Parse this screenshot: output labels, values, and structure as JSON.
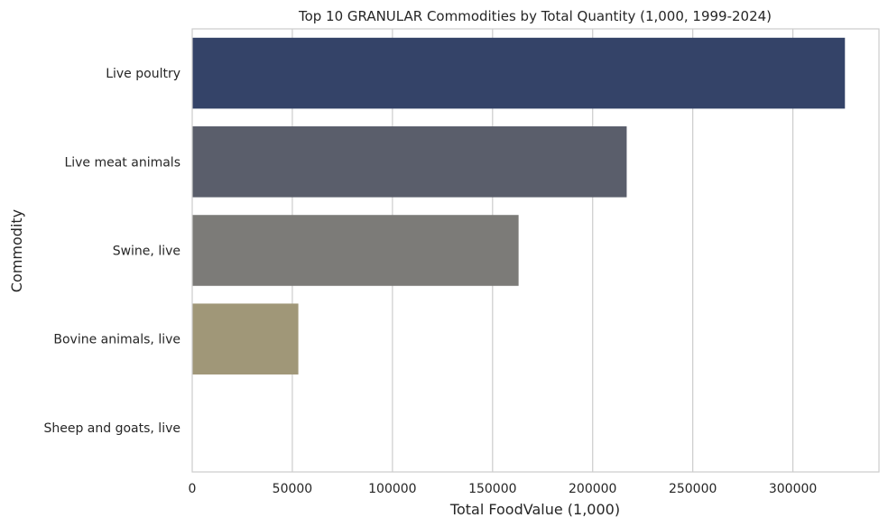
{
  "chart_data": {
    "type": "bar",
    "orientation": "horizontal",
    "title": "Top 10 GRANULAR Commodities by Total Quantity (1,000, 1999-2024)",
    "xlabel": "Total FoodValue (1,000)",
    "ylabel": "Commodity",
    "categories": [
      "Live poultry",
      "Live meat animals",
      "Swine, live",
      "Bovine animals, live",
      "Sheep and goats, live"
    ],
    "values": [
      326000,
      217000,
      163000,
      53000,
      0
    ],
    "colors": [
      "#344368",
      "#5a5e6b",
      "#7c7b78",
      "#a09778",
      "#c8b880"
    ],
    "xlim": [
      0,
      343000
    ],
    "xticks": [
      0,
      50000,
      100000,
      150000,
      200000,
      250000,
      300000
    ],
    "grid": true
  }
}
